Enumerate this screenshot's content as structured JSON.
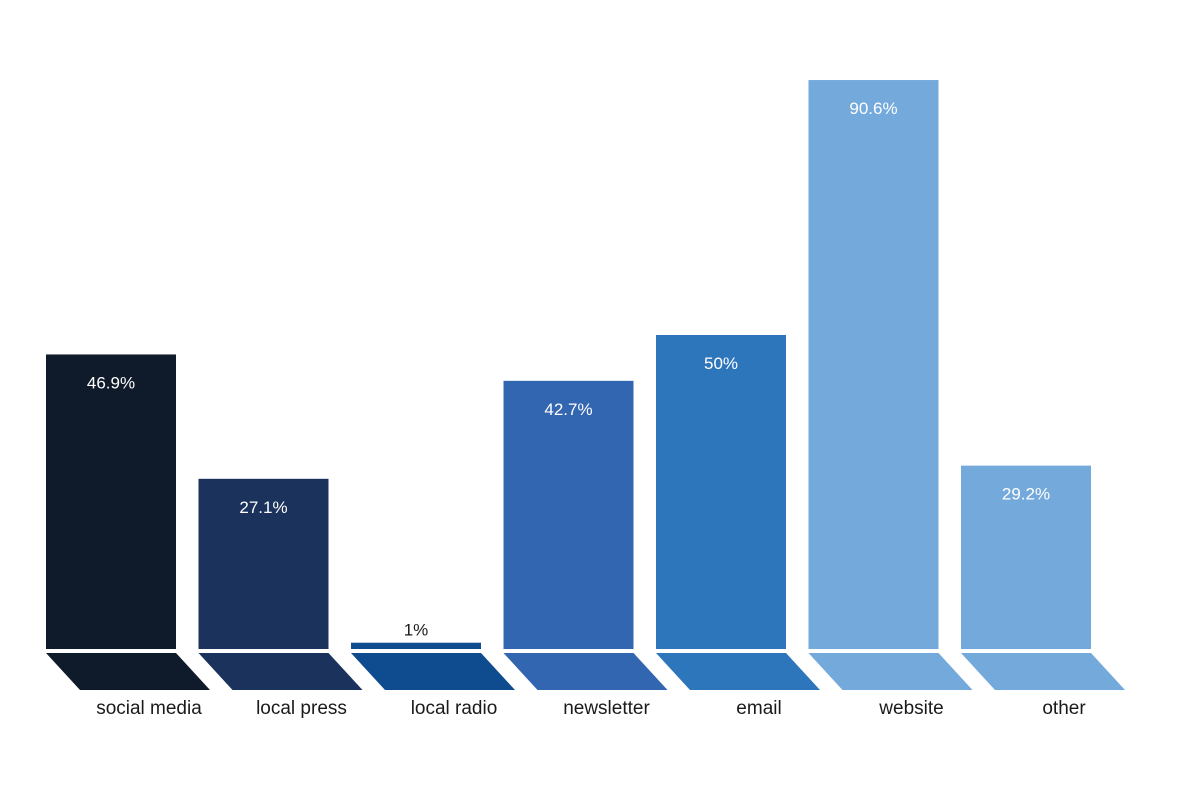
{
  "chart_data": {
    "type": "bar",
    "title": "",
    "xlabel": "",
    "ylabel": "",
    "ylim": [
      0,
      100
    ],
    "grid": false,
    "legend": "none",
    "categories": [
      "social media",
      "local press",
      "local radio",
      "newsletter",
      "email",
      "website",
      "other"
    ],
    "values": [
      46.9,
      27.1,
      1,
      42.7,
      50,
      90.6,
      29.2
    ],
    "value_labels": [
      "46.9%",
      "27.1%",
      "1%",
      "42.7%",
      "50%",
      "90.6%",
      "29.2%"
    ],
    "colors": [
      "#0f1a2a",
      "#1b325c",
      "#0e4c8f",
      "#3366b0",
      "#2e76bc",
      "#74a9db",
      "#74a9db"
    ],
    "value_label_colors": [
      "#ffffff",
      "#ffffff",
      "#1a1a1a",
      "#ffffff",
      "#ffffff",
      "#ffffff",
      "#ffffff"
    ]
  }
}
